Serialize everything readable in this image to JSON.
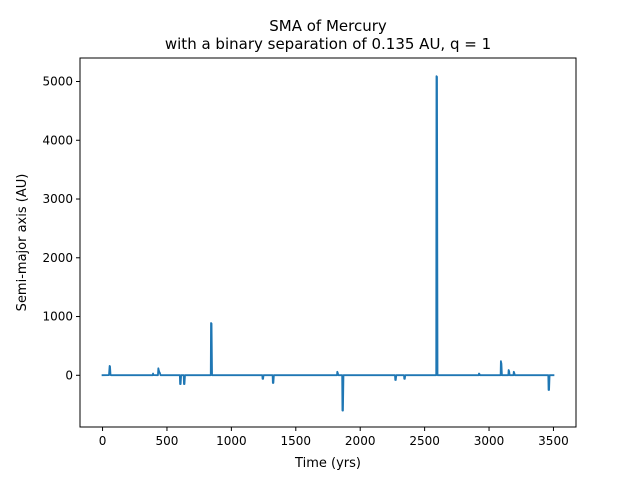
{
  "chart_data": {
    "type": "line",
    "title": "SMA of Mercury",
    "subtitle": "with a binary separation of 0.135 AU, q = 1",
    "xlabel": "Time (yrs)",
    "ylabel": "Semi-major axis (AU)",
    "xlim": [
      -175,
      3675
    ],
    "ylim": [
      -880,
      5400
    ],
    "xticks": [
      0,
      500,
      1000,
      1500,
      2000,
      2500,
      3000,
      3500
    ],
    "yticks": [
      0,
      1000,
      2000,
      3000,
      4000,
      5000
    ],
    "grid": false,
    "series": [
      {
        "color": "#1f77b4",
        "x": [
          0,
          50,
          55,
          58,
          62,
          66,
          300,
          390,
          392,
          395,
          430,
          433,
          437,
          440,
          445,
          450,
          600,
          602,
          606,
          610,
          630,
          632,
          636,
          640,
          840,
          842,
          846,
          850,
          1240,
          1242,
          1246,
          1250,
          1320,
          1322,
          1326,
          1330,
          1820,
          1822,
          1826,
          1830,
          1860,
          1862,
          1866,
          1870,
          2270,
          2272,
          2276,
          2280,
          2340,
          2342,
          2346,
          2350,
          2590,
          2592,
          2596,
          2600,
          2920,
          2922,
          2926,
          2930,
          3090,
          3092,
          3096,
          3100,
          3150,
          3152,
          3156,
          3160,
          3190,
          3192,
          3196,
          3200,
          3460,
          3462,
          3466,
          3470,
          3500
        ],
        "y": [
          2,
          3,
          160,
          150,
          5,
          2,
          2,
          2,
          30,
          3,
          2,
          120,
          80,
          60,
          40,
          2,
          2,
          -150,
          -150,
          2,
          2,
          -150,
          -150,
          2,
          2,
          890,
          880,
          2,
          2,
          -60,
          -60,
          2,
          2,
          -130,
          -130,
          2,
          2,
          60,
          40,
          2,
          2,
          -600,
          -600,
          2,
          2,
          -80,
          -80,
          2,
          2,
          -60,
          -60,
          2,
          2,
          5090,
          5080,
          2,
          2,
          30,
          20,
          2,
          2,
          240,
          200,
          2,
          2,
          90,
          70,
          2,
          2,
          60,
          40,
          2,
          2,
          -250,
          -250,
          2,
          2
        ]
      }
    ]
  }
}
